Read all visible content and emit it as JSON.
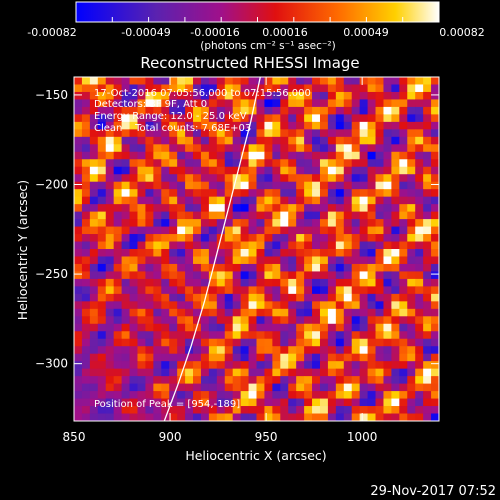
{
  "colorbar": {
    "tick_labels": [
      "-0.00082",
      "-0.00049",
      "-0.00016",
      "0.00016",
      "0.00049",
      "0.00082"
    ],
    "range": [
      -0.00082,
      0.00082
    ],
    "units": "(photons cm⁻² s⁻¹ asec⁻²)",
    "colormap": "blue-purple-red-orange-yellow-white"
  },
  "chart_data": {
    "type": "heatmap",
    "title": "Reconstructed RHESSI Image",
    "xlabel": "Heliocentric X (arcsec)",
    "ylabel": "Heliocentric Y (arcsec)",
    "xlim": [
      850,
      1040
    ],
    "ylim": [
      -332,
      -140
    ],
    "x_ticks": [
      850,
      900,
      950,
      1000
    ],
    "y_ticks": [
      -150,
      -200,
      -250,
      -300
    ],
    "annotations": [
      "17-Oct-2016 07:05:56.000 to 07:15:56.000",
      "Detectors: 3F 9F, Att 0",
      "Energy Range: 12.0 - 25.0 keV",
      "Clean    Total counts: 7.68E+03"
    ],
    "peak_label": "Position of Peak = [954,-189]",
    "peak": [
      954,
      -189
    ],
    "limb_curve": {
      "x": [
        947,
        942,
        936,
        930,
        924,
        918,
        911,
        904,
        897
      ],
      "y": [
        -140,
        -165,
        -190,
        -215,
        -240,
        -265,
        -290,
        -312,
        -332
      ]
    }
  },
  "footer": {
    "timestamp": "29-Nov-2017 07:52"
  }
}
